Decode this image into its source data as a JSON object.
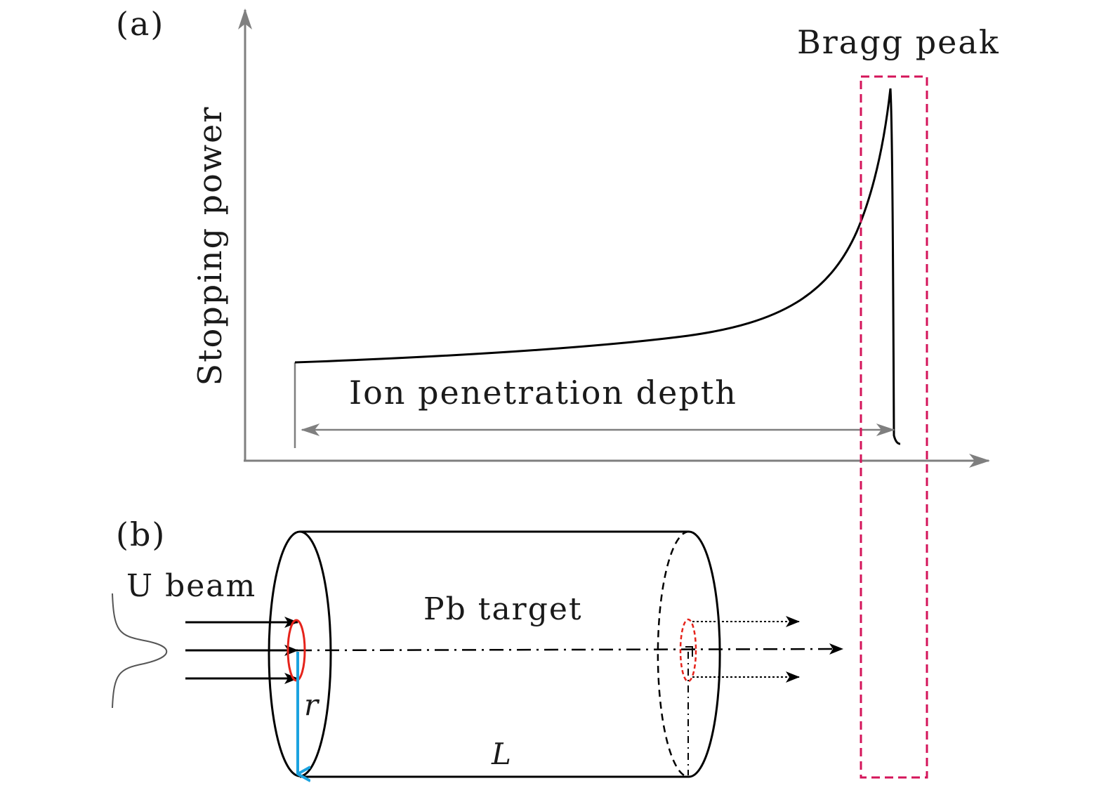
{
  "panel_a": {
    "label": "(a)",
    "ylabel": "Stopping power",
    "peak_label": "Bragg peak",
    "depth_label": "Ion penetration depth"
  },
  "panel_b": {
    "label": "(b)",
    "beam_label": "U beam",
    "target_label": "Pb target",
    "radius_label": "r",
    "length_label": "L"
  },
  "colors": {
    "axis": "#7f7f7f",
    "curve": "#000000",
    "peak_box": "#d4145a",
    "beam_spot": "#e5231b",
    "radius_arrow": "#1ca3e0"
  },
  "icons": [
    "arrow-right-icon",
    "arrow-up-icon",
    "double-arrow-icon"
  ]
}
